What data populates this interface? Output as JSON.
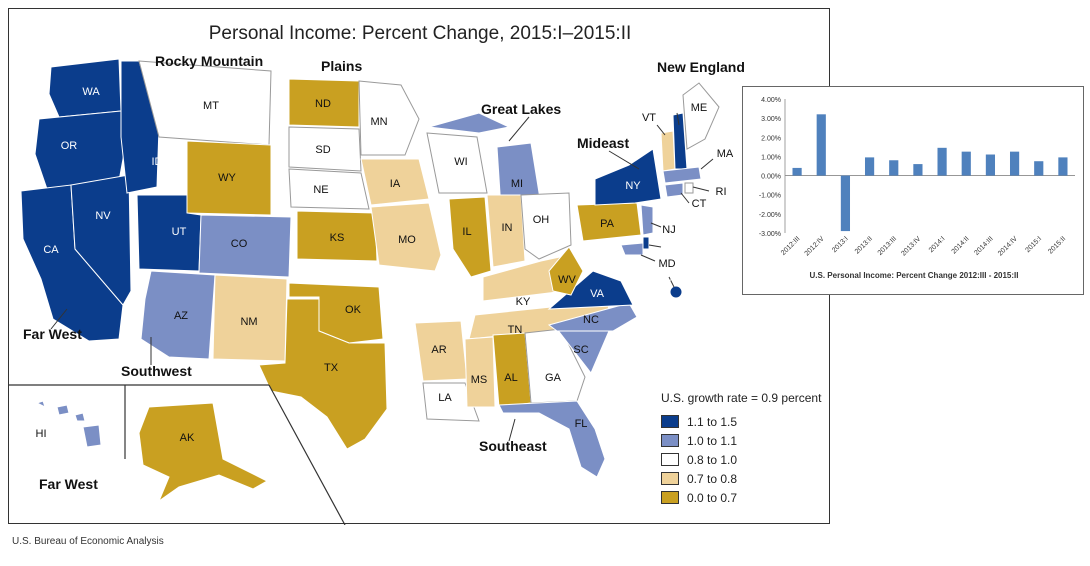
{
  "map": {
    "title": "Personal Income: Percent Change, 2015:I–2015:II",
    "regions": {
      "rocky_mountain": "Rocky Mountain",
      "plains": "Plains",
      "great_lakes": "Great Lakes",
      "new_england": "New England",
      "mideast": "Mideast",
      "far_west": "Far West",
      "far_west_2": "Far West",
      "southwest": "Southwest",
      "southeast": "Southeast"
    },
    "states": [
      {
        "abbr": "WA",
        "class": 0
      },
      {
        "abbr": "OR",
        "class": 0
      },
      {
        "abbr": "CA",
        "class": 0
      },
      {
        "abbr": "NV",
        "class": 0
      },
      {
        "abbr": "ID",
        "class": 0
      },
      {
        "abbr": "UT",
        "class": 0
      },
      {
        "abbr": "MT",
        "class": 2
      },
      {
        "abbr": "WY",
        "class": 4
      },
      {
        "abbr": "CO",
        "class": 1
      },
      {
        "abbr": "AZ",
        "class": 1
      },
      {
        "abbr": "NM",
        "class": 3
      },
      {
        "abbr": "TX",
        "class": 4
      },
      {
        "abbr": "OK",
        "class": 4
      },
      {
        "abbr": "KS",
        "class": 4
      },
      {
        "abbr": "NE",
        "class": 2
      },
      {
        "abbr": "SD",
        "class": 2
      },
      {
        "abbr": "ND",
        "class": 4
      },
      {
        "abbr": "MN",
        "class": 2
      },
      {
        "abbr": "IA",
        "class": 3
      },
      {
        "abbr": "MO",
        "class": 3
      },
      {
        "abbr": "AR",
        "class": 3
      },
      {
        "abbr": "LA",
        "class": 2
      },
      {
        "abbr": "MS",
        "class": 3
      },
      {
        "abbr": "AL",
        "class": 4
      },
      {
        "abbr": "TN",
        "class": 3
      },
      {
        "abbr": "KY",
        "class": 3
      },
      {
        "abbr": "IL",
        "class": 4
      },
      {
        "abbr": "IN",
        "class": 3
      },
      {
        "abbr": "OH",
        "class": 2
      },
      {
        "abbr": "MI",
        "class": 1
      },
      {
        "abbr": "WI",
        "class": 2
      },
      {
        "abbr": "GA",
        "class": 2
      },
      {
        "abbr": "FL",
        "class": 1
      },
      {
        "abbr": "SC",
        "class": 1
      },
      {
        "abbr": "NC",
        "class": 1
      },
      {
        "abbr": "VA",
        "class": 0
      },
      {
        "abbr": "WV",
        "class": 4
      },
      {
        "abbr": "PA",
        "class": 4
      },
      {
        "abbr": "NY",
        "class": 0
      },
      {
        "abbr": "NJ",
        "class": 1
      },
      {
        "abbr": "DE",
        "class": 0
      },
      {
        "abbr": "MD",
        "class": 1
      },
      {
        "abbr": "DC",
        "class": 0
      },
      {
        "abbr": "VT",
        "class": 3
      },
      {
        "abbr": "NH",
        "class": 0
      },
      {
        "abbr": "ME",
        "class": 2
      },
      {
        "abbr": "MA",
        "class": 1
      },
      {
        "abbr": "RI",
        "class": 2
      },
      {
        "abbr": "CT",
        "class": 1
      },
      {
        "abbr": "AK",
        "class": 4
      },
      {
        "abbr": "HI",
        "class": 1
      }
    ]
  },
  "legend": {
    "title": "U.S. growth rate = 0.9 percent",
    "items": [
      {
        "label": "1.1 to 1.5",
        "color": "#0b3d8c"
      },
      {
        "label": "1.0 to 1.1",
        "color": "#7b8fc5"
      },
      {
        "label": "0.8 to 1.0",
        "color": "#ffffff"
      },
      {
        "label": "0.7 to 0.8",
        "color": "#efd29a"
      },
      {
        "label": "0.0 to 0.7",
        "color": "#c9a021"
      }
    ]
  },
  "chart_data": {
    "type": "bar",
    "title": "U.S. Personal Income: Percent Change 2012:III - 2015:II",
    "categories": [
      "2012:III",
      "2012:IV",
      "2013:I",
      "2013:II",
      "2013:III",
      "2013:IV",
      "2014:I",
      "2014:II",
      "2014:III",
      "2014:IV",
      "2015:I",
      "2015:II"
    ],
    "values": [
      0.4,
      3.2,
      -2.9,
      0.95,
      0.8,
      0.6,
      1.45,
      1.25,
      1.1,
      1.25,
      0.75,
      0.95
    ],
    "ylim": [
      -3.0,
      4.0
    ],
    "yticks": [
      "4.00%",
      "3.00%",
      "2.00%",
      "1.00%",
      "0.00%",
      "-1.00%",
      "-2.00%",
      "-3.00%"
    ],
    "bar_color": "#4f81bd"
  },
  "source": "U.S. Bureau of Economic Analysis"
}
